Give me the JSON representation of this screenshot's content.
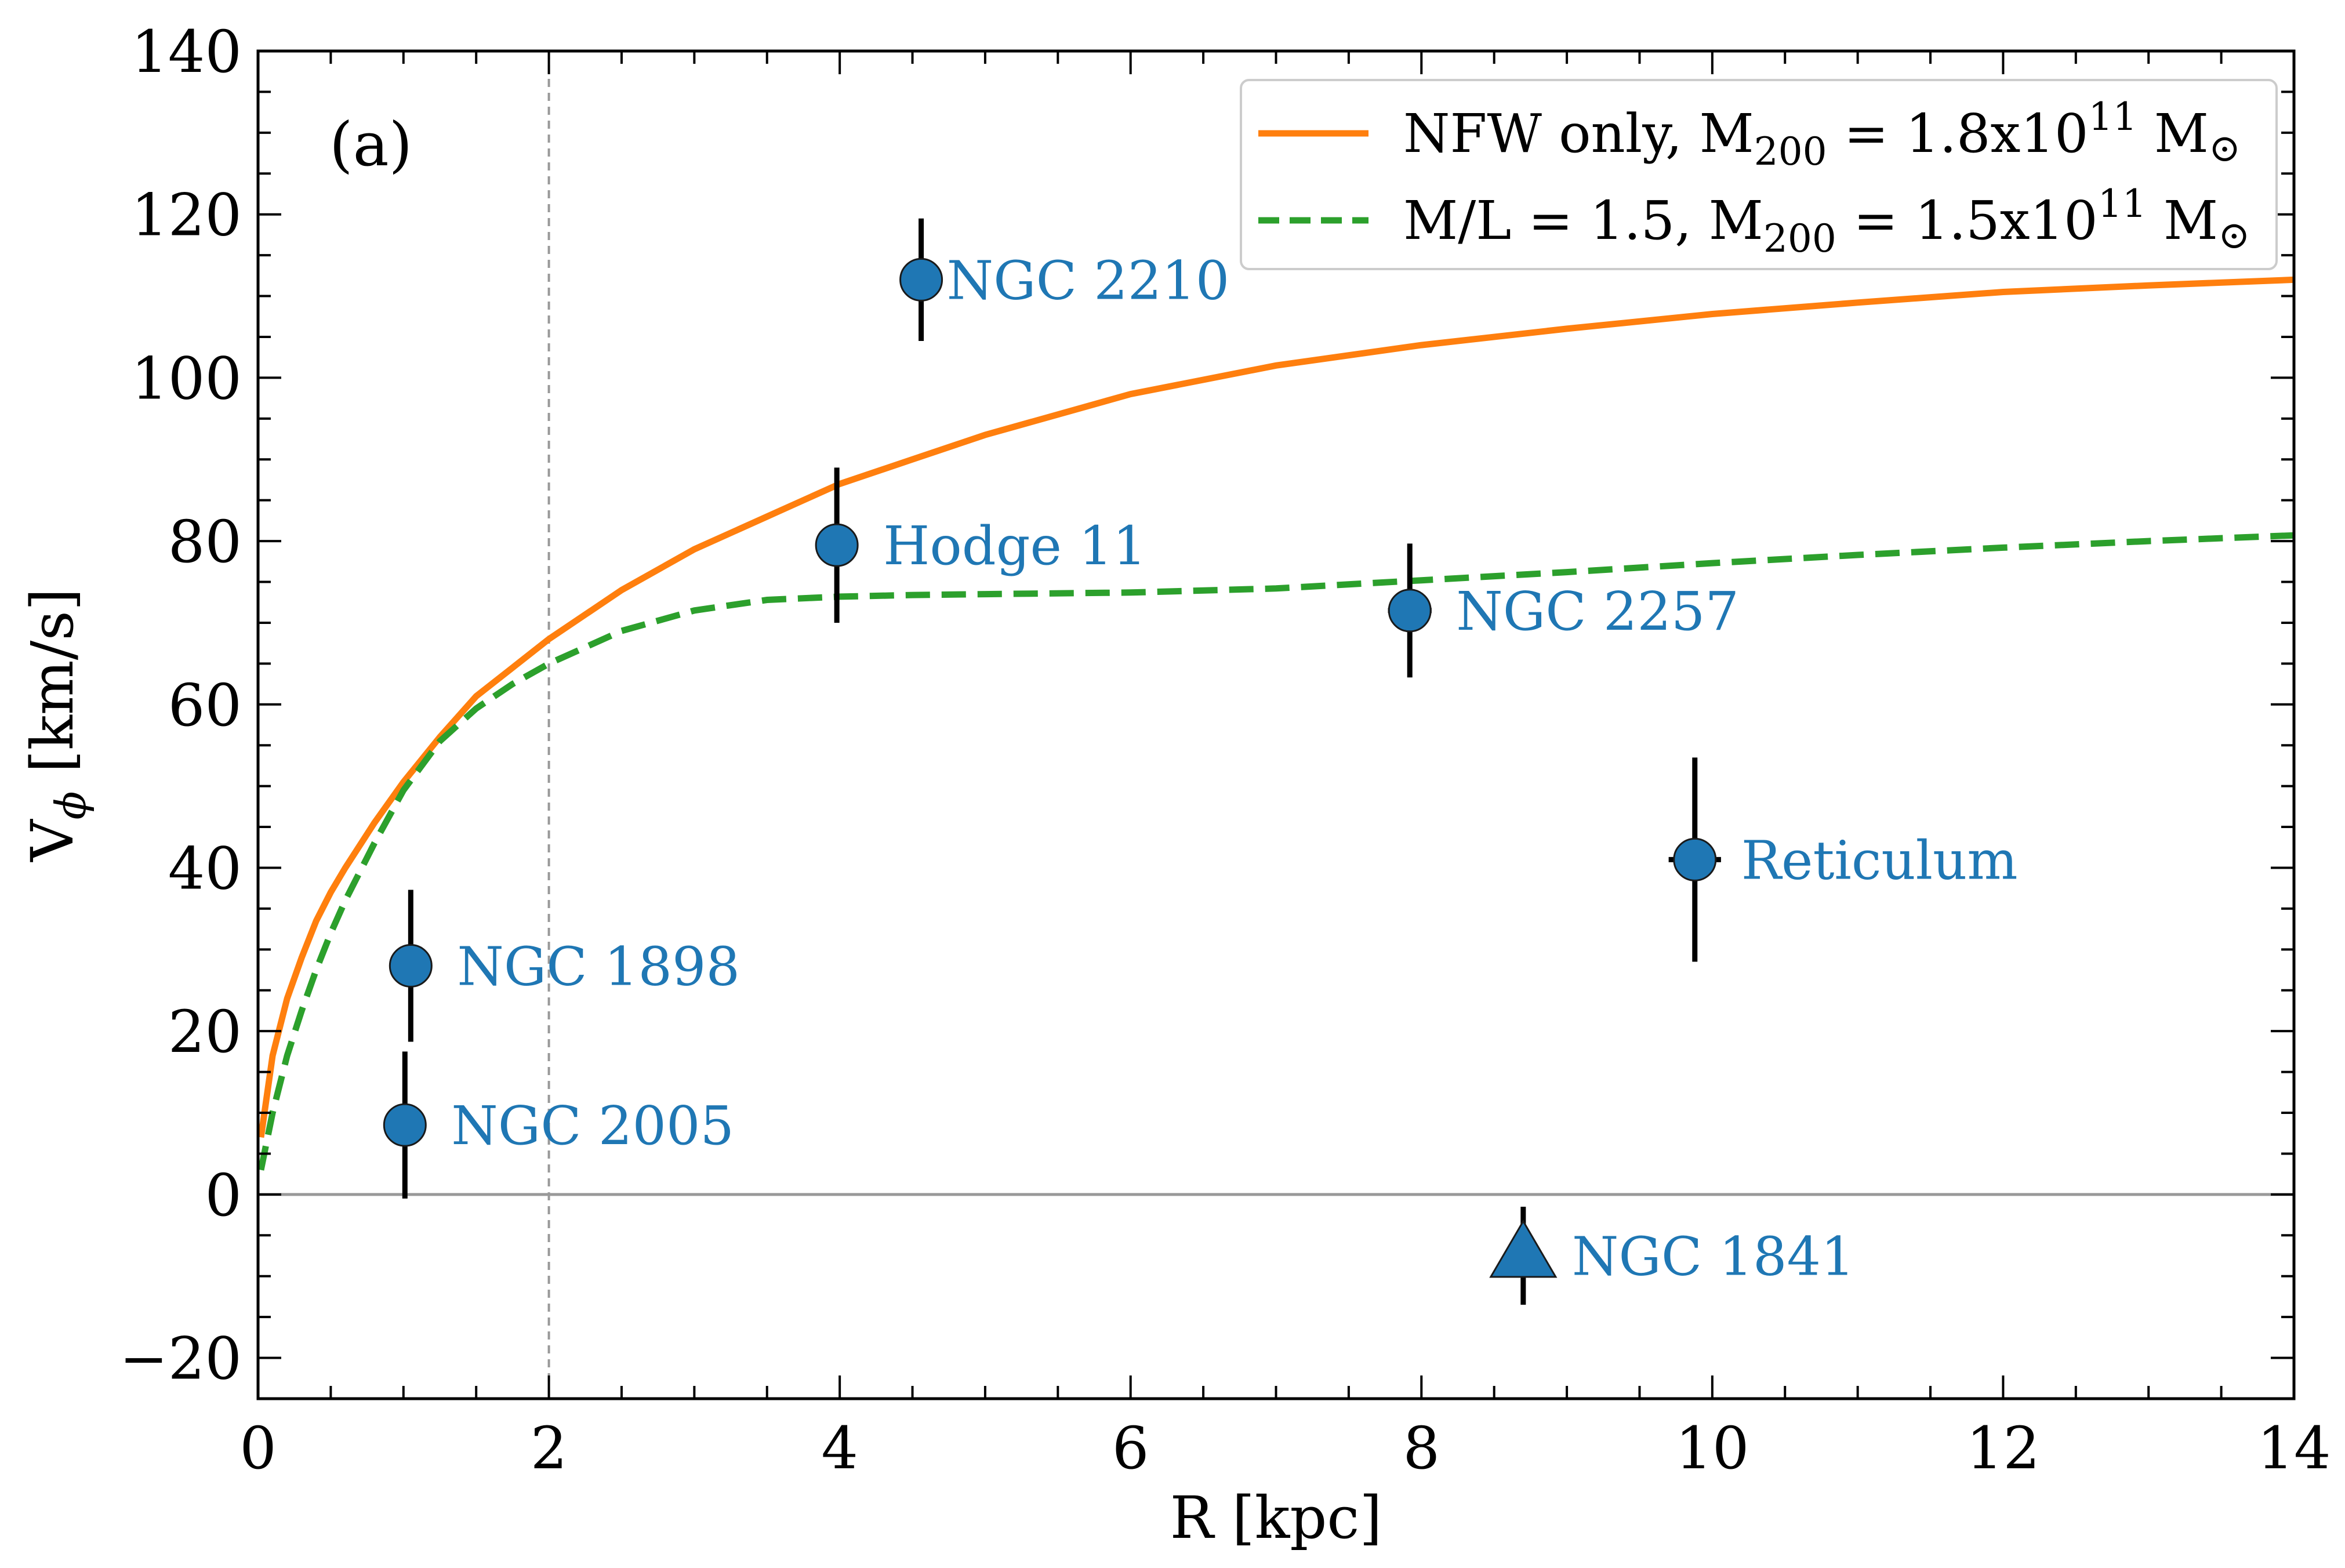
{
  "chart_data": {
    "type": "scatter",
    "panel_label": "(a)",
    "xlabel": "R [kpc]",
    "ylabel": "V",
    "ylabel_subscript": "ϕ",
    "ylabel_unit": " [km/s]",
    "xlim": [
      0,
      14
    ],
    "ylim": [
      -25,
      140
    ],
    "xticks": [
      0,
      2,
      4,
      6,
      8,
      10,
      12,
      14
    ],
    "yticks": [
      -20,
      0,
      20,
      40,
      60,
      80,
      100,
      120,
      140
    ],
    "x_minor_step": 0.5,
    "y_minor_step": 5,
    "grid": false,
    "legend_position": "top-right",
    "zero_line": 0,
    "vertical_reference_line": 2,
    "colors": {
      "points": "#1f77b4",
      "nfw": "#ff7f0e",
      "ml": "#2ca02c",
      "errorbars": "#000000",
      "zero_line": "#999999",
      "reference_line": "#999999"
    },
    "points": [
      {
        "label": "NGC 2210",
        "x": 4.56,
        "y": 112,
        "yerr": 7.5,
        "xerr": 0.1,
        "marker": "circle"
      },
      {
        "label": "Hodge 11",
        "x": 3.98,
        "y": 79.5,
        "yerr": 9.5,
        "xerr": 0.05,
        "marker": "circle"
      },
      {
        "label": "NGC 2257",
        "x": 7.92,
        "y": 71.5,
        "yerr": 8.2,
        "xerr": 0.15,
        "marker": "circle"
      },
      {
        "label": "Reticulum",
        "x": 9.88,
        "y": 41,
        "yerr": 12.5,
        "xerr": 0.18,
        "marker": "circle"
      },
      {
        "label": "NGC 1898",
        "x": 1.05,
        "y": 28,
        "yerr": 9.3,
        "xerr": 0.05,
        "marker": "circle"
      },
      {
        "label": "NGC 2005",
        "x": 1.01,
        "y": 8.5,
        "yerr": 9,
        "xerr": 0.05,
        "marker": "circle"
      },
      {
        "label": "NGC 1841",
        "x": 8.7,
        "y": -7.5,
        "yerr": 6,
        "xerr": 0,
        "marker": "triangle"
      }
    ],
    "series": [
      {
        "name": "NFW only, M",
        "name_sub": "200",
        "name_mid": " = 1.8x10",
        "name_sup": "11",
        "name_end": " M",
        "name_sym": "⊙",
        "style": "solid",
        "x": [
          0.02,
          0.1,
          0.2,
          0.3,
          0.4,
          0.5,
          0.6,
          0.8,
          1.0,
          1.25,
          1.5,
          1.75,
          2.0,
          2.5,
          3.0,
          3.5,
          4.0,
          4.5,
          5.0,
          6.0,
          7.0,
          8.0,
          9.0,
          10.0,
          11.0,
          12.0,
          13.0,
          14.0
        ],
        "y": [
          7,
          17,
          24,
          29,
          33.5,
          37,
          40,
          45.5,
          50.5,
          56,
          61,
          64.5,
          68,
          74,
          79,
          83,
          87,
          90,
          93,
          98,
          101.5,
          104,
          106,
          107.8,
          109.2,
          110.5,
          111.3,
          112
        ]
      },
      {
        "name": "M/L = 1.5, M",
        "name_sub": "200",
        "name_mid": " = 1.5x10",
        "name_sup": "11",
        "name_end": " M",
        "name_sym": "⊙",
        "style": "dashed",
        "x": [
          0.02,
          0.1,
          0.2,
          0.3,
          0.4,
          0.5,
          0.6,
          0.8,
          1.0,
          1.25,
          1.5,
          1.75,
          2.0,
          2.5,
          3.0,
          3.5,
          4.0,
          4.5,
          5.0,
          6.0,
          7.0,
          8.0,
          9.0,
          10.0,
          11.0,
          12.0,
          13.0,
          14.0
        ],
        "y": [
          3,
          10,
          17,
          22.5,
          27.5,
          32,
          36,
          43,
          49.5,
          55.5,
          59.5,
          62.5,
          65,
          69,
          71.5,
          72.8,
          73.2,
          73.4,
          73.5,
          73.7,
          74.2,
          75.2,
          76.2,
          77.3,
          78.3,
          79.2,
          80,
          80.7
        ]
      }
    ]
  }
}
